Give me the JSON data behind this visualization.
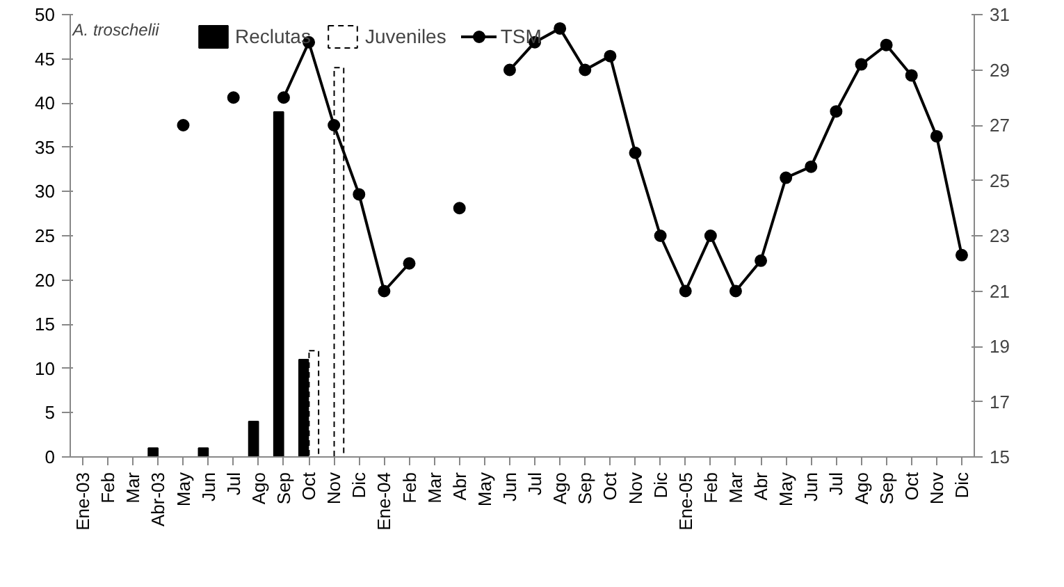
{
  "chart_data": {
    "type": "bar",
    "annotations": [
      "A. troschelii"
    ],
    "categories": [
      "Ene-03",
      "Feb",
      "Mar",
      "Abr-03",
      "May",
      "Jun",
      "Jul",
      "Ago",
      "Sep",
      "Oct",
      "Nov",
      "Dic",
      "Ene-04",
      "Feb",
      "Mar",
      "Abr",
      "May",
      "Jun",
      "Jul",
      "Ago",
      "Sep",
      "Oct",
      "Nov",
      "Dic",
      "Ene-05",
      "Feb",
      "Mar",
      "Abr",
      "May",
      "Jun",
      "Jul",
      "Ago",
      "Sep",
      "Oct",
      "Nov",
      "Dic"
    ],
    "series": [
      {
        "name": "Reclutas",
        "color": "#000000",
        "values": [
          0,
          0,
          0,
          1,
          0,
          1,
          0,
          4,
          39,
          11,
          0,
          0,
          0,
          0,
          0,
          0,
          0,
          0,
          0,
          0,
          0,
          0,
          0,
          0,
          0,
          0,
          0,
          0,
          0,
          0,
          0,
          0,
          0,
          0,
          0,
          0
        ]
      },
      {
        "name": "Juveniles",
        "color": "#ffffff",
        "line_style": "dashed",
        "values": [
          0,
          0,
          0,
          0,
          0,
          0,
          0,
          0,
          0,
          12,
          44,
          0,
          0,
          0,
          0,
          0,
          0,
          0,
          0,
          0,
          0,
          0,
          0,
          0,
          0,
          0,
          0,
          0,
          0,
          0,
          0,
          0,
          0,
          0,
          0,
          0
        ]
      },
      {
        "name": "TSM",
        "type": "line",
        "axis": "y2",
        "color": "#000000",
        "marker": "circle",
        "values": [
          null,
          null,
          null,
          null,
          27,
          null,
          28,
          null,
          28,
          30,
          27,
          24.5,
          21,
          22,
          null,
          24,
          null,
          29,
          30,
          30.5,
          29,
          29.5,
          26,
          23,
          21,
          23,
          21,
          22.1,
          25.1,
          25.5,
          27.5,
          29.2,
          29.9,
          28.8,
          26.6,
          22.3
        ]
      }
    ],
    "ylim": [
      0,
      50
    ],
    "yticks": [
      0,
      5,
      10,
      15,
      20,
      25,
      30,
      35,
      40,
      45,
      50
    ],
    "y2lim": [
      15,
      31
    ],
    "y2ticks": [
      15,
      17,
      19,
      21,
      23,
      25,
      27,
      29,
      31
    ],
    "grid": false,
    "legend": "top"
  }
}
